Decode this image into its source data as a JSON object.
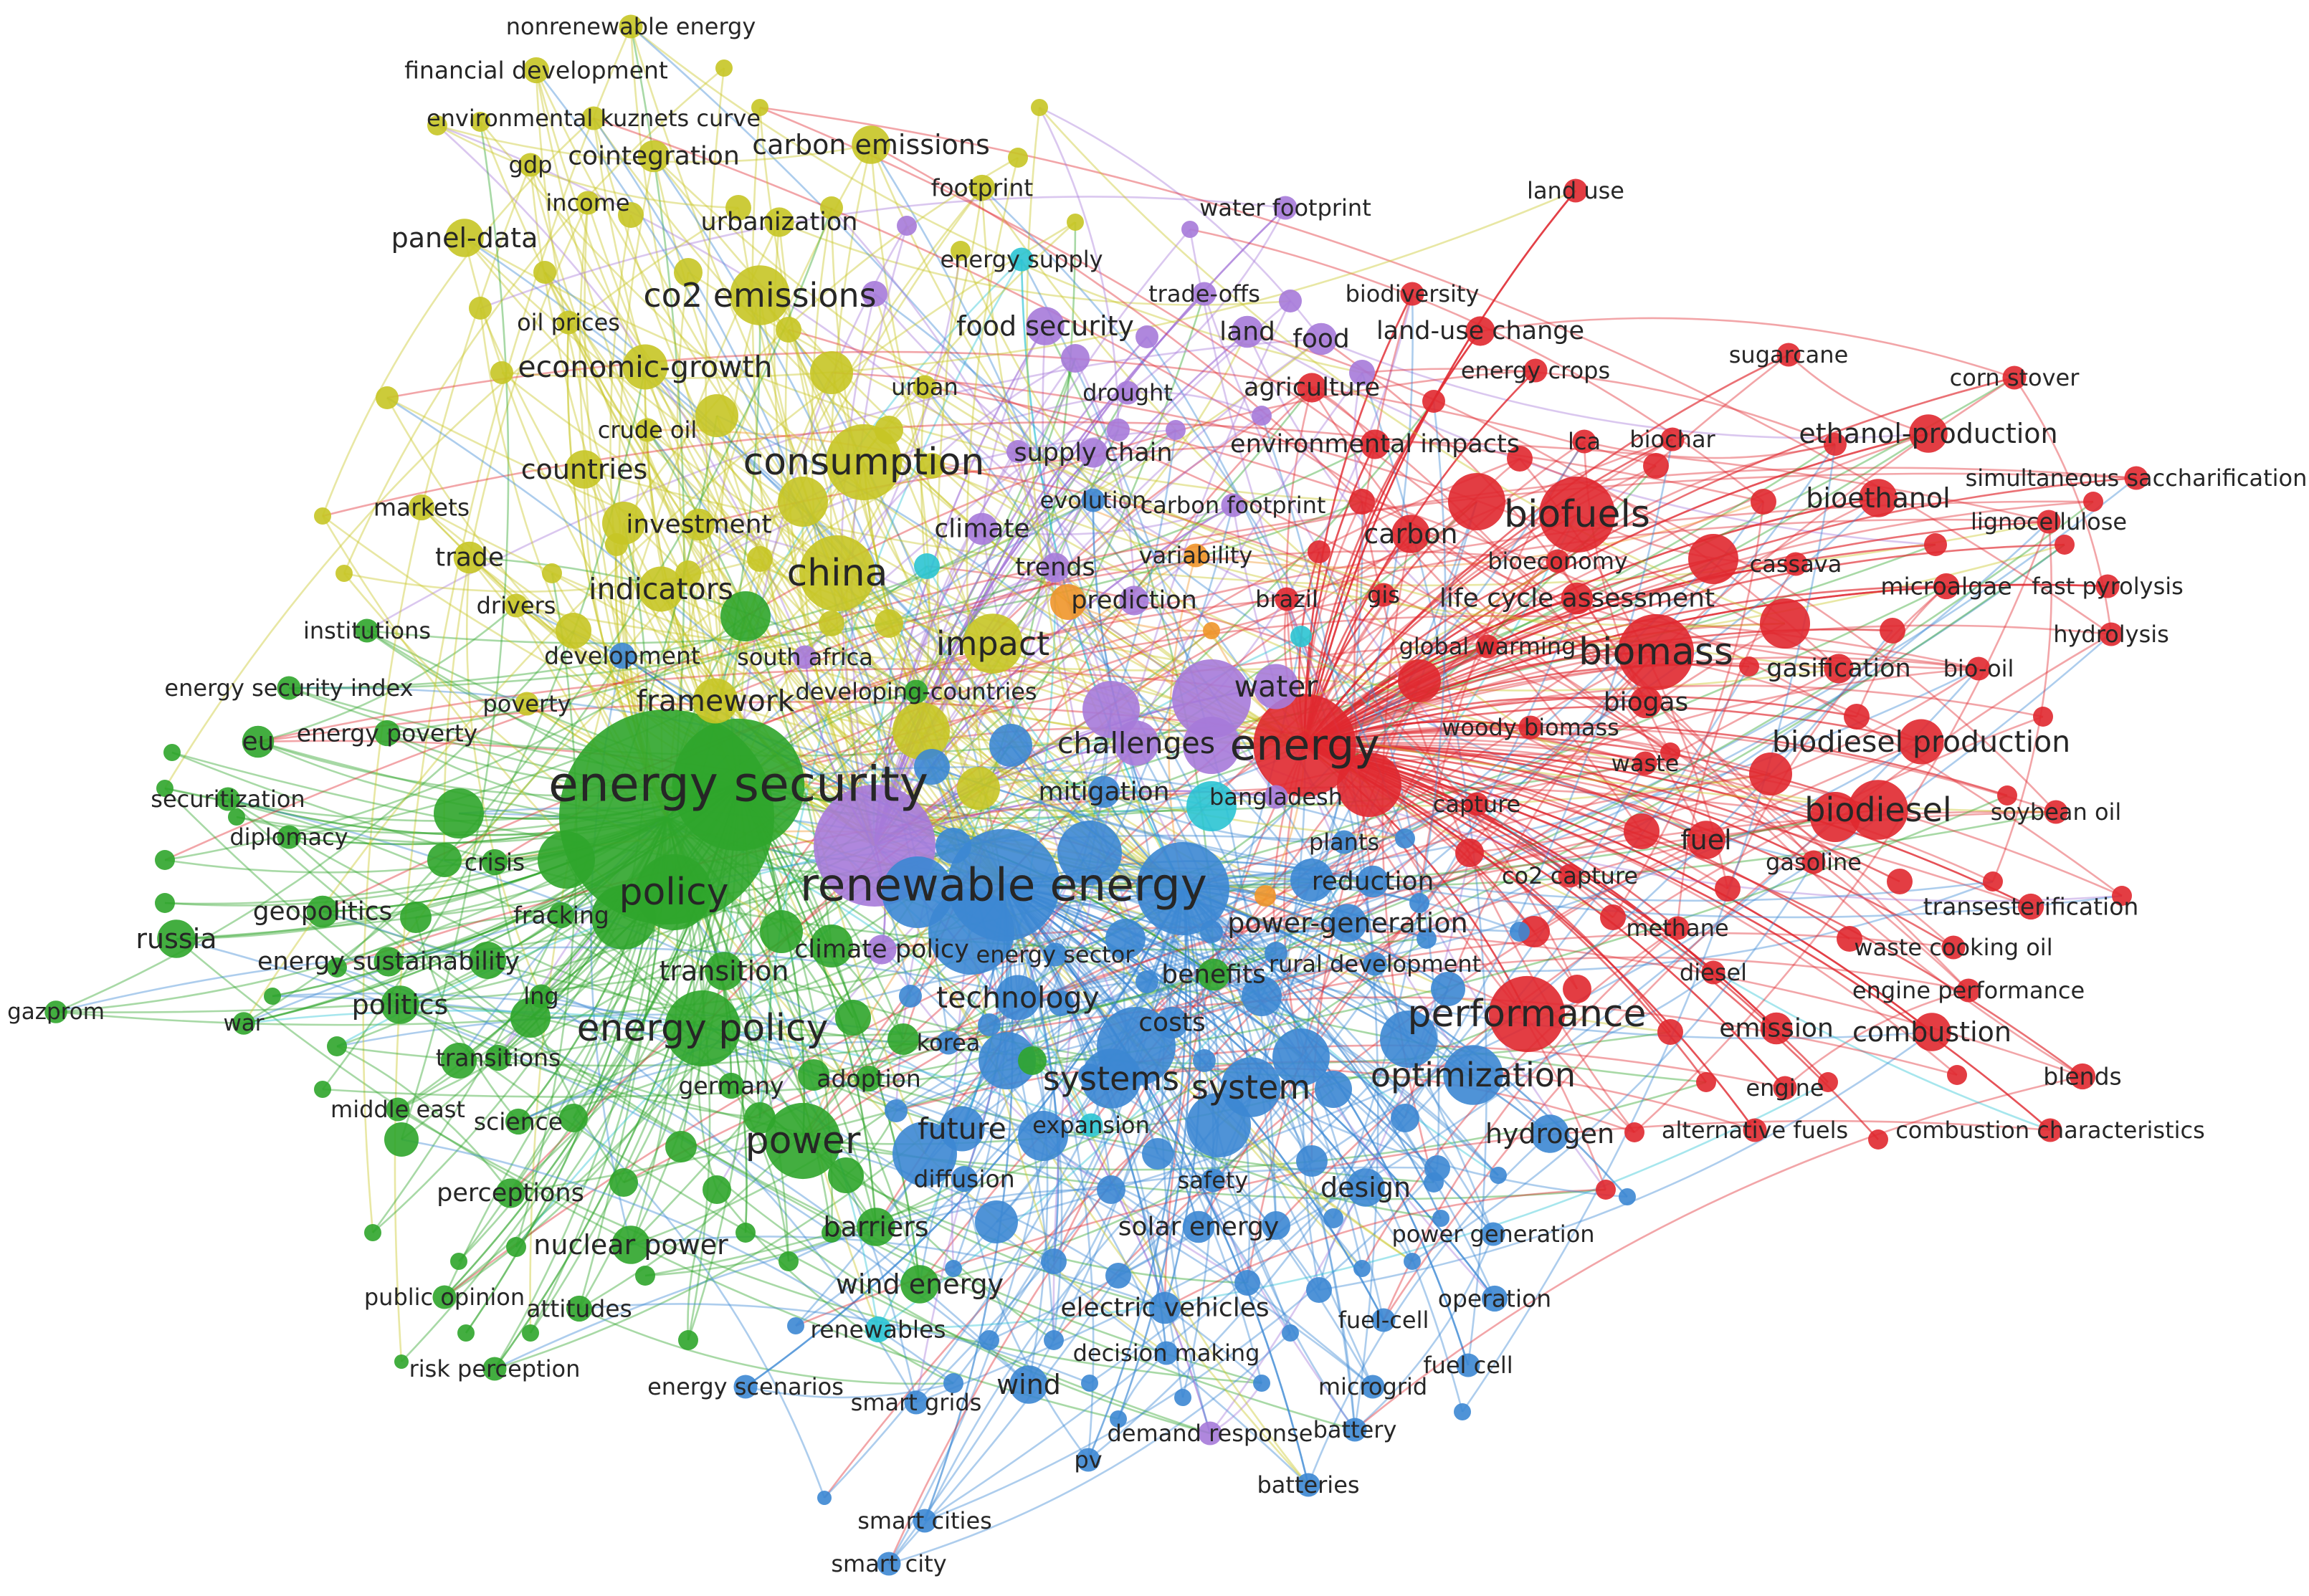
{
  "cluster_colors": {
    "red": "#e0282f",
    "green": "#2fa52b",
    "blue": "#3c87d3",
    "yellow": "#c7c525",
    "purple": "#a67ad9",
    "cyan": "#2bc4d3",
    "orange": "#f0962a"
  },
  "keywords": [
    {
      "id": "energy-security",
      "label": "energy security",
      "cluster": "green",
      "weight": 10
    },
    {
      "id": "renewable-energy",
      "label": "renewable energy",
      "cluster": "blue",
      "weight": 9
    },
    {
      "id": "energy",
      "label": "energy",
      "cluster": "red",
      "weight": 8.5
    },
    {
      "id": "china",
      "label": "china",
      "cluster": "yellow",
      "weight": 7
    },
    {
      "id": "consumption",
      "label": "consumption",
      "cluster": "yellow",
      "weight": 7
    },
    {
      "id": "policy",
      "label": "policy",
      "cluster": "green",
      "weight": 7
    },
    {
      "id": "biofuels",
      "label": "biofuels",
      "cluster": "red",
      "weight": 7
    },
    {
      "id": "biomass",
      "label": "biomass",
      "cluster": "red",
      "weight": 7
    },
    {
      "id": "performance",
      "label": "performance",
      "cluster": "red",
      "weight": 7
    },
    {
      "id": "energy-policy",
      "label": "energy policy",
      "cluster": "green",
      "weight": 7
    },
    {
      "id": "power",
      "label": "power",
      "cluster": "green",
      "weight": 7
    },
    {
      "id": "optimization",
      "label": "optimization",
      "cluster": "blue",
      "weight": 6
    },
    {
      "id": "system",
      "label": "system",
      "cluster": "blue",
      "weight": 6
    },
    {
      "id": "systems",
      "label": "systems",
      "cluster": "blue",
      "weight": 6
    },
    {
      "id": "impact",
      "label": "impact",
      "cluster": "yellow",
      "weight": 6
    },
    {
      "id": "co2-emissions",
      "label": "co2 emissions",
      "cluster": "yellow",
      "weight": 6
    },
    {
      "id": "economic-growth",
      "label": "economic-growth",
      "cluster": "yellow",
      "weight": 5
    },
    {
      "id": "indicators",
      "label": "indicators",
      "cluster": "yellow",
      "weight": 5
    },
    {
      "id": "challenges",
      "label": "challenges",
      "cluster": "purple",
      "weight": 5
    },
    {
      "id": "water",
      "label": "water",
      "cluster": "purple",
      "weight": 5
    },
    {
      "id": "biodiesel",
      "label": "biodiesel",
      "cluster": "red",
      "weight": 6
    },
    {
      "id": "biodiesel-production",
      "label": "biodiesel production",
      "cluster": "red",
      "weight": 5
    },
    {
      "id": "framework",
      "label": "framework",
      "cluster": "yellow",
      "weight": 5
    },
    {
      "id": "technology",
      "label": "technology",
      "cluster": "blue",
      "weight": 5
    },
    {
      "id": "food-security",
      "label": "food security",
      "cluster": "purple",
      "weight": 4.5
    },
    {
      "id": "future",
      "label": "future",
      "cluster": "blue",
      "weight": 5
    },
    {
      "id": "countries",
      "label": "countries",
      "cluster": "yellow",
      "weight": 4.5
    },
    {
      "id": "fuel",
      "label": "fuel",
      "cluster": "red",
      "weight": 4.5
    },
    {
      "id": "combustion",
      "label": "combustion",
      "cluster": "red",
      "weight": 4.5
    },
    {
      "id": "bioethanol",
      "label": "bioethanol",
      "cluster": "red",
      "weight": 4.5
    },
    {
      "id": "ethanol-production",
      "label": "ethanol-production",
      "cluster": "red",
      "weight": 4.5
    },
    {
      "id": "power-generation",
      "label": "power-generation",
      "cluster": "blue",
      "weight": 4.5
    },
    {
      "id": "carbon",
      "label": "carbon",
      "cluster": "red",
      "weight": 4.5
    },
    {
      "id": "panel-data",
      "label": "panel-data",
      "cluster": "yellow",
      "weight": 4.5
    },
    {
      "id": "carbon-emissions",
      "label": "carbon emissions",
      "cluster": "yellow",
      "weight": 4.5
    },
    {
      "id": "politics",
      "label": "politics",
      "cluster": "green",
      "weight": 4.5
    },
    {
      "id": "russia",
      "label": "russia",
      "cluster": "green",
      "weight": 4.5
    },
    {
      "id": "hydrogen",
      "label": "hydrogen",
      "cluster": "blue",
      "weight": 4.5
    },
    {
      "id": "wind-energy",
      "label": "wind energy",
      "cluster": "green",
      "weight": 4.5
    },
    {
      "id": "barriers",
      "label": "barriers",
      "cluster": "green",
      "weight": 4.5
    },
    {
      "id": "design",
      "label": "design",
      "cluster": "blue",
      "weight": 4.5
    },
    {
      "id": "wind",
      "label": "wind",
      "cluster": "blue",
      "weight": 4.5
    },
    {
      "id": "transition",
      "label": "transition",
      "cluster": "green",
      "weight": 4.5
    },
    {
      "id": "nuclear-power",
      "label": "nuclear power",
      "cluster": "green",
      "weight": 4.5
    },
    {
      "id": "biogas",
      "label": "biogas",
      "cluster": "red",
      "weight": 4
    },
    {
      "id": "life-cycle-assessment",
      "label": "life cycle assessment",
      "cluster": "red",
      "weight": 4
    },
    {
      "id": "emission",
      "label": "emission",
      "cluster": "red",
      "weight": 4
    },
    {
      "id": "geopolitics",
      "label": "geopolitics",
      "cluster": "green",
      "weight": 4
    },
    {
      "id": "eu",
      "label": "eu",
      "cluster": "green",
      "weight": 4
    },
    {
      "id": "reduction",
      "label": "reduction",
      "cluster": "blue",
      "weight": 4
    },
    {
      "id": "benefits",
      "label": "benefits",
      "cluster": "green",
      "weight": 4
    },
    {
      "id": "mitigation",
      "label": "mitigation",
      "cluster": "blue",
      "weight": 4
    },
    {
      "id": "food",
      "label": "food",
      "cluster": "purple",
      "weight": 4
    },
    {
      "id": "land",
      "label": "land",
      "cluster": "purple",
      "weight": 4
    },
    {
      "id": "investment",
      "label": "investment",
      "cluster": "yellow",
      "weight": 4
    },
    {
      "id": "trade",
      "label": "trade",
      "cluster": "yellow",
      "weight": 4
    },
    {
      "id": "costs",
      "label": "costs",
      "cluster": "blue",
      "weight": 4
    },
    {
      "id": "solar-energy",
      "label": "solar energy",
      "cluster": "blue",
      "weight": 4
    },
    {
      "id": "electric-vehicles",
      "label": "electric vehicles",
      "cluster": "blue",
      "weight": 4
    },
    {
      "id": "energy-sustainability",
      "label": "energy sustainability",
      "cluster": "green",
      "weight": 3.8
    },
    {
      "id": "cointegration",
      "label": "cointegration",
      "cluster": "yellow",
      "weight": 4
    },
    {
      "id": "urbanization",
      "label": "urbanization",
      "cluster": "yellow",
      "weight": 3.8
    },
    {
      "id": "climate",
      "label": "climate",
      "cluster": "purple",
      "weight": 4
    },
    {
      "id": "trends",
      "label": "trends",
      "cluster": "purple",
      "weight": 3.8
    },
    {
      "id": "prediction",
      "label": "prediction",
      "cluster": "purple",
      "weight": 3.8
    },
    {
      "id": "agriculture",
      "label": "agriculture",
      "cluster": "red",
      "weight": 3.8
    },
    {
      "id": "supply-chain",
      "label": "supply chain",
      "cluster": "purple",
      "weight": 3.8
    },
    {
      "id": "environmental-impacts",
      "label": "environmental impacts",
      "cluster": "red",
      "weight": 3.8
    },
    {
      "id": "land-use-change",
      "label": "land-use change",
      "cluster": "red",
      "weight": 3.8
    },
    {
      "id": "gasification",
      "label": "gasification",
      "cluster": "red",
      "weight": 3.8
    },
    {
      "id": "climate-policy",
      "label": "climate policy",
      "cluster": "purple",
      "weight": 3.8
    },
    {
      "id": "perceptions",
      "label": "perceptions",
      "cluster": "green",
      "weight": 3.8
    },
    {
      "id": "science",
      "label": "science",
      "cluster": "green",
      "weight": 3.5
    },
    {
      "id": "attitudes",
      "label": "attitudes",
      "cluster": "green",
      "weight": 3.5
    },
    {
      "id": "adoption",
      "label": "adoption",
      "cluster": "green",
      "weight": 3.5
    },
    {
      "id": "germany",
      "label": "germany",
      "cluster": "green",
      "weight": 3.5
    },
    {
      "id": "transitions",
      "label": "transitions",
      "cluster": "green",
      "weight": 3.5
    },
    {
      "id": "diffusion",
      "label": "diffusion",
      "cluster": "blue",
      "weight": 3.5
    },
    {
      "id": "operation",
      "label": "operation",
      "cluster": "blue",
      "weight": 3.5
    },
    {
      "id": "fracking",
      "label": "fracking",
      "cluster": "green",
      "weight": 3.5
    },
    {
      "id": "crisis",
      "label": "crisis",
      "cluster": "green",
      "weight": 3.5
    },
    {
      "id": "energy-poverty",
      "label": "energy poverty",
      "cluster": "green",
      "weight": 3.5
    },
    {
      "id": "securitization",
      "label": "securitization",
      "cluster": "green",
      "weight": 3.3
    },
    {
      "id": "diplomacy",
      "label": "diplomacy",
      "cluster": "green",
      "weight": 3.3
    },
    {
      "id": "institutions",
      "label": "institutions",
      "cluster": "green",
      "weight": 3.3
    },
    {
      "id": "energy-security-index",
      "label": "energy security index",
      "cluster": "green",
      "weight": 3.3
    },
    {
      "id": "gazprom",
      "label": "gazprom",
      "cluster": "green",
      "weight": 3.2
    },
    {
      "id": "war",
      "label": "war",
      "cluster": "green",
      "weight": 3.2
    },
    {
      "id": "middle-east",
      "label": "middle east",
      "cluster": "green",
      "weight": 3.3
    },
    {
      "id": "public-opinion",
      "label": "public opinion",
      "cluster": "green",
      "weight": 3.3
    },
    {
      "id": "risk-perception",
      "label": "risk perception",
      "cluster": "green",
      "weight": 3.3
    },
    {
      "id": "lng",
      "label": "lng",
      "cluster": "green",
      "weight": 3.3
    },
    {
      "id": "poverty",
      "label": "poverty",
      "cluster": "yellow",
      "weight": 3.3
    },
    {
      "id": "development",
      "label": "development",
      "cluster": "blue",
      "weight": 3.5
    },
    {
      "id": "drivers",
      "label": "drivers",
      "cluster": "yellow",
      "weight": 3.3
    },
    {
      "id": "markets",
      "label": "markets",
      "cluster": "yellow",
      "weight": 3.5
    },
    {
      "id": "crude-oil",
      "label": "crude oil",
      "cluster": "yellow",
      "weight": 3.3
    },
    {
      "id": "oil-prices",
      "label": "oil prices",
      "cluster": "yellow",
      "weight": 3.3
    },
    {
      "id": "income",
      "label": "income",
      "cluster": "yellow",
      "weight": 3.3
    },
    {
      "id": "gdp",
      "label": "gdp",
      "cluster": "yellow",
      "weight": 3.3
    },
    {
      "id": "ekc",
      "label": "environmental kuznets curve",
      "cluster": "yellow",
      "weight": 3.3
    },
    {
      "id": "financial-development",
      "label": "financial development",
      "cluster": "yellow",
      "weight": 3.5
    },
    {
      "id": "nonrenewable-energy",
      "label": "nonrenewable energy",
      "cluster": "yellow",
      "weight": 3.3
    },
    {
      "id": "footprint",
      "label": "footprint",
      "cluster": "yellow",
      "weight": 3.5
    },
    {
      "id": "energy-supply",
      "label": "energy supply",
      "cluster": "cyan",
      "weight": 3.3
    },
    {
      "id": "urban",
      "label": "urban",
      "cluster": "yellow",
      "weight": 3.3
    },
    {
      "id": "drought",
      "label": "drought",
      "cluster": "purple",
      "weight": 3.3
    },
    {
      "id": "evolution",
      "label": "evolution",
      "cluster": "blue",
      "weight": 3.3
    },
    {
      "id": "carbon-footprint",
      "label": "carbon footprint",
      "cluster": "purple",
      "weight": 3.3
    },
    {
      "id": "variability",
      "label": "variability",
      "cluster": "orange",
      "weight": 3.3
    },
    {
      "id": "brazil",
      "label": "brazil",
      "cluster": "red",
      "weight": 3.3
    },
    {
      "id": "gis",
      "label": "gis",
      "cluster": "red",
      "weight": 3.3
    },
    {
      "id": "south-africa",
      "label": "south africa",
      "cluster": "purple",
      "weight": 3.3
    },
    {
      "id": "developing-countries",
      "label": "developing-countries",
      "cluster": "green",
      "weight": 3.3
    },
    {
      "id": "bangladesh",
      "label": "bangladesh",
      "cluster": "purple",
      "weight": 3.3
    },
    {
      "id": "energy-sector",
      "label": "energy sector",
      "cluster": "blue",
      "weight": 3.3
    },
    {
      "id": "rural-development",
      "label": "rural development",
      "cluster": "blue",
      "weight": 3.3
    },
    {
      "id": "plants",
      "label": "plants",
      "cluster": "blue",
      "weight": 3.3
    },
    {
      "id": "korea",
      "label": "korea",
      "cluster": "blue",
      "weight": 3.3
    },
    {
      "id": "expansion",
      "label": "expansion",
      "cluster": "cyan",
      "weight": 3.3
    },
    {
      "id": "safety",
      "label": "safety",
      "cluster": "blue",
      "weight": 3.3
    },
    {
      "id": "power-generation-2",
      "label": "power generation",
      "cluster": "blue",
      "weight": 3.3
    },
    {
      "id": "fuel-cell",
      "label": "fuel-cell",
      "cluster": "blue",
      "weight": 3.3
    },
    {
      "id": "fuel-cell-2",
      "label": "fuel cell",
      "cluster": "blue",
      "weight": 3.3
    },
    {
      "id": "microgrid",
      "label": "microgrid",
      "cluster": "blue",
      "weight": 3.3
    },
    {
      "id": "battery",
      "label": "battery",
      "cluster": "blue",
      "weight": 3.3
    },
    {
      "id": "batteries",
      "label": "batteries",
      "cluster": "blue",
      "weight": 3.3
    },
    {
      "id": "demand-response",
      "label": "demand response",
      "cluster": "purple",
      "weight": 3.3
    },
    {
      "id": "decision-making",
      "label": "decision making",
      "cluster": "blue",
      "weight": 3.3
    },
    {
      "id": "pv",
      "label": "pv",
      "cluster": "blue",
      "weight": 3.3
    },
    {
      "id": "smart-grids",
      "label": "smart grids",
      "cluster": "blue",
      "weight": 3.3
    },
    {
      "id": "energy-scenarios",
      "label": "energy scenarios",
      "cluster": "blue",
      "weight": 3.3
    },
    {
      "id": "renewables",
      "label": "renewables",
      "cluster": "cyan",
      "weight": 3.5
    },
    {
      "id": "smart-cities",
      "label": "smart cities",
      "cluster": "blue",
      "weight": 3.3
    },
    {
      "id": "smart-city",
      "label": "smart city",
      "cluster": "blue",
      "weight": 3.3
    },
    {
      "id": "water-footprint",
      "label": "water footprint",
      "cluster": "purple",
      "weight": 3.3
    },
    {
      "id": "trade-offs",
      "label": "trade-offs",
      "cluster": "purple",
      "weight": 3.3
    },
    {
      "id": "biodiversity",
      "label": "biodiversity",
      "cluster": "red",
      "weight": 3.3
    },
    {
      "id": "land-use",
      "label": "land use",
      "cluster": "red",
      "weight": 3.3
    },
    {
      "id": "energy-crops",
      "label": "energy crops",
      "cluster": "red",
      "weight": 3.3
    },
    {
      "id": "sugarcane",
      "label": "sugarcane",
      "cluster": "red",
      "weight": 3.3
    },
    {
      "id": "corn-stover",
      "label": "corn stover",
      "cluster": "red",
      "weight": 3.3
    },
    {
      "id": "lca",
      "label": "lca",
      "cluster": "red",
      "weight": 3.3
    },
    {
      "id": "biochar",
      "label": "biochar",
      "cluster": "red",
      "weight": 3.3
    },
    {
      "id": "simultaneous-saccharification",
      "label": "simultaneous saccharification",
      "cluster": "red",
      "weight": 3.3
    },
    {
      "id": "lignocellulose",
      "label": "lignocellulose",
      "cluster": "red",
      "weight": 3.3
    },
    {
      "id": "bioeconomy",
      "label": "bioeconomy",
      "cluster": "red",
      "weight": 3.3
    },
    {
      "id": "cassava",
      "label": "cassava",
      "cluster": "red",
      "weight": 3.3
    },
    {
      "id": "microalgae",
      "label": "microalgae",
      "cluster": "red",
      "weight": 3.5
    },
    {
      "id": "fast-pyrolysis",
      "label": "fast pyrolysis",
      "cluster": "red",
      "weight": 3.3
    },
    {
      "id": "hydrolysis",
      "label": "hydrolysis",
      "cluster": "red",
      "weight": 3.3
    },
    {
      "id": "bio-oil",
      "label": "bio-oil",
      "cluster": "red",
      "weight": 3.3
    },
    {
      "id": "global-warming",
      "label": "global warming",
      "cluster": "red",
      "weight": 3.3
    },
    {
      "id": "woody-biomass",
      "label": "woody biomass",
      "cluster": "red",
      "weight": 3.3
    },
    {
      "id": "waste",
      "label": "waste",
      "cluster": "red",
      "weight": 3.3
    },
    {
      "id": "capture",
      "label": "capture",
      "cluster": "red",
      "weight": 3.3
    },
    {
      "id": "co2-capture",
      "label": "co2 capture",
      "cluster": "red",
      "weight": 3.3
    },
    {
      "id": "gasoline",
      "label": "gasoline",
      "cluster": "red",
      "weight": 3.3
    },
    {
      "id": "soybean-oil",
      "label": "soybean oil",
      "cluster": "red",
      "weight": 3.3
    },
    {
      "id": "transesterification",
      "label": "transesterification",
      "cluster": "red",
      "weight": 3.5
    },
    {
      "id": "methane",
      "label": "methane",
      "cluster": "red",
      "weight": 3.3
    },
    {
      "id": "waste-cooking-oil",
      "label": "waste cooking oil",
      "cluster": "red",
      "weight": 3.3
    },
    {
      "id": "diesel",
      "label": "diesel",
      "cluster": "red",
      "weight": 3.3
    },
    {
      "id": "engine-performance",
      "label": "engine performance",
      "cluster": "red",
      "weight": 3.3
    },
    {
      "id": "blends",
      "label": "blends",
      "cluster": "red",
      "weight": 3.5
    },
    {
      "id": "engine",
      "label": "engine",
      "cluster": "red",
      "weight": 3.3
    },
    {
      "id": "alternative-fuels",
      "label": "alternative fuels",
      "cluster": "red",
      "weight": 3.3
    },
    {
      "id": "combustion-characteristics",
      "label": "combustion characteristics",
      "cluster": "red",
      "weight": 3.3
    }
  ]
}
